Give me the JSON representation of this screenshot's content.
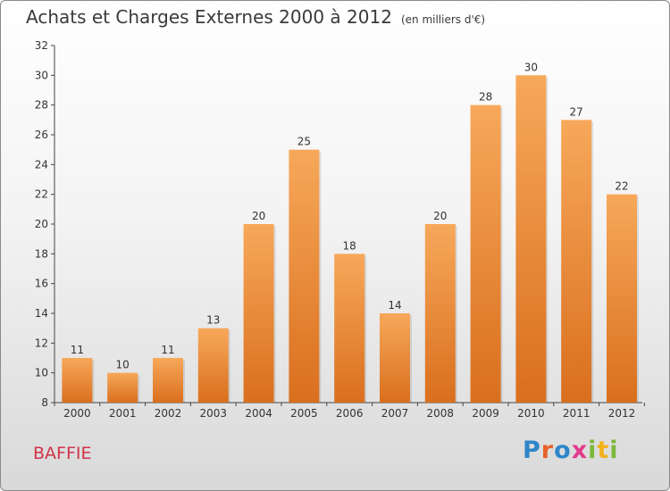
{
  "header": {
    "title": "Achats et Charges Externes 2000 à 2012",
    "subtitle": "(en milliers d'€)"
  },
  "footer": {
    "town": "BAFFIE",
    "logo": "Proxiti"
  },
  "colors": {
    "bar_top": "#f7a85a",
    "bar_bottom": "#d96f1e",
    "axis": "#444444",
    "label": "#333333",
    "town": "#d0344a"
  },
  "chart_data": {
    "type": "bar",
    "title": "Achats et Charges Externes 2000 à 2012",
    "subtitle": "(en milliers d'€)",
    "categories": [
      "2000",
      "2001",
      "2002",
      "2003",
      "2004",
      "2005",
      "2006",
      "2007",
      "2008",
      "2009",
      "2010",
      "2011",
      "2012"
    ],
    "values": [
      11,
      10,
      11,
      13,
      20,
      25,
      18,
      14,
      20,
      28,
      30,
      27,
      22
    ],
    "ylim": [
      8,
      32
    ],
    "yticks": [
      8,
      10,
      12,
      14,
      16,
      18,
      20,
      22,
      24,
      26,
      28,
      30,
      32
    ],
    "grid": false,
    "legend": "none"
  }
}
